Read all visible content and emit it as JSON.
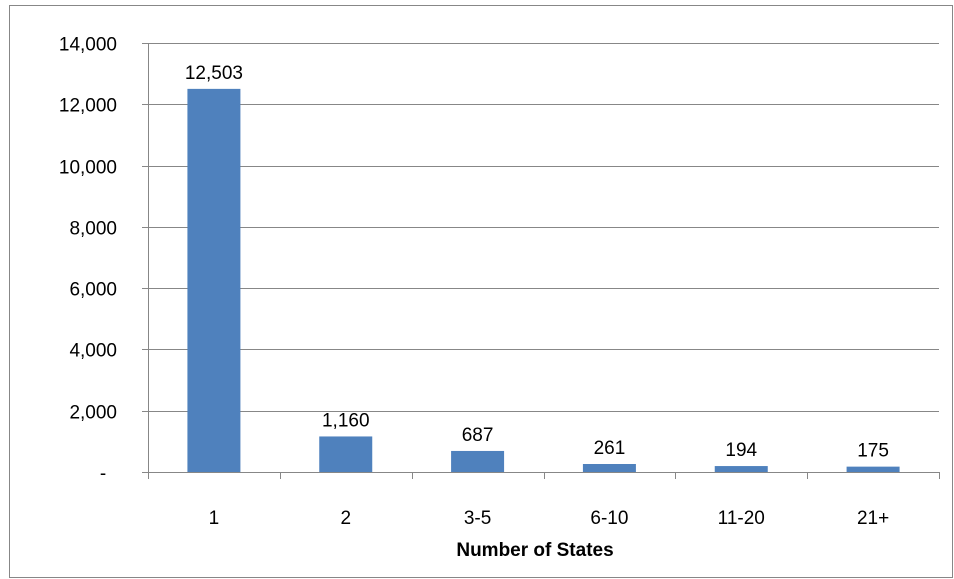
{
  "chart_data": {
    "type": "bar",
    "title": "",
    "xlabel": "Number of States",
    "ylabel": "",
    "categories": [
      "1",
      "2",
      "3-5",
      "6-10",
      "11-20",
      "21+"
    ],
    "values": [
      12503,
      1160,
      687,
      261,
      194,
      175
    ],
    "data_labels": [
      "12,503",
      "1,160",
      "687",
      "261",
      "194",
      "175"
    ],
    "ylim": [
      0,
      14000
    ],
    "y_ticks": [
      0,
      2000,
      4000,
      6000,
      8000,
      10000,
      12000,
      14000
    ],
    "y_tick_labels": [
      "-",
      "2,000",
      "4,000",
      "6,000",
      "8,000",
      "10,000",
      "12,000",
      "14,000"
    ],
    "grid": true,
    "legend": "none",
    "bar_color": "#4F81BD",
    "gridline_color": "#878787"
  }
}
